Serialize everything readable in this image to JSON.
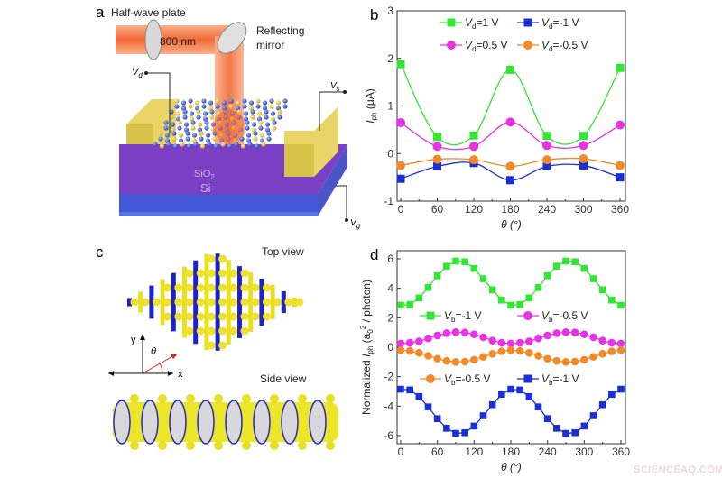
{
  "panels": {
    "a": {
      "letter": "a",
      "half_wave_plate": "Half-wave plate",
      "wavelength": "800 nm",
      "mirror_line1": "Reflecting",
      "mirror_line2": "mirror",
      "vd": {
        "symbol": "V",
        "sub": "d"
      },
      "vs": {
        "symbol": "V",
        "sub": "s"
      },
      "vg": {
        "symbol": "V",
        "sub": "g"
      },
      "sio2": "SiO",
      "sio2_sub": "2",
      "si": "Si"
    },
    "c": {
      "letter": "c",
      "top_view": "Top view",
      "side_view": "Side view",
      "axis_x": "x",
      "axis_y": "y",
      "angle": "θ"
    }
  },
  "chart_data": [
    {
      "panel": "b",
      "type": "line",
      "xlabel": "θ (°)",
      "ylabel": {
        "symbol": "I",
        "sub": "ph",
        "rest": " (μA)"
      },
      "xlim": [
        0,
        360
      ],
      "ylim": [
        -1,
        3
      ],
      "xticks": [
        0,
        60,
        120,
        180,
        240,
        300,
        360
      ],
      "yticks": [
        -1,
        0,
        1,
        2,
        3
      ],
      "grid": false,
      "legend_placement": "top",
      "x": [
        0,
        60,
        120,
        180,
        240,
        300,
        360
      ],
      "series": [
        {
          "name": "Vd=1 V",
          "label": {
            "symbol": "V",
            "sub": "d",
            "rest": "=1 V"
          },
          "marker": "square",
          "color": "#33e633",
          "values": [
            1.88,
            0.35,
            0.38,
            1.76,
            0.37,
            0.37,
            1.8
          ]
        },
        {
          "name": "Vd=-1 V",
          "label": {
            "symbol": "V",
            "sub": "d",
            "rest": "=-1 V"
          },
          "marker": "square",
          "color": "#1a2fd6",
          "values": [
            -0.53,
            -0.27,
            -0.2,
            -0.56,
            -0.27,
            -0.25,
            -0.5
          ]
        },
        {
          "name": "Vd=0.5 V",
          "label": {
            "symbol": "V",
            "sub": "d",
            "rest": "=0.5 V"
          },
          "marker": "circle",
          "color": "#e633e6",
          "values": [
            0.65,
            0.15,
            0.15,
            0.66,
            0.17,
            0.17,
            0.6
          ]
        },
        {
          "name": "Vd=-0.5 V",
          "label": {
            "symbol": "V",
            "sub": "d",
            "rest": "=-0.5 V"
          },
          "marker": "circle",
          "color": "#f28a2a",
          "values": [
            -0.25,
            -0.12,
            -0.13,
            -0.27,
            -0.13,
            -0.11,
            -0.25
          ]
        }
      ]
    },
    {
      "panel": "d",
      "type": "line",
      "xlabel": "θ (°)",
      "ylabel": {
        "pre": "Normalized ",
        "symbol": "I",
        "sub": "ph",
        "rest": " (a",
        "sub2": "0",
        "sup": "2",
        "end": " / photon)"
      },
      "xlim": [
        0,
        360
      ],
      "ylim": [
        -6.5,
        6.5
      ],
      "xticks": [
        0,
        60,
        120,
        180,
        240,
        300,
        360
      ],
      "yticks": [
        -6,
        -4,
        -2,
        0,
        2,
        4,
        6
      ],
      "grid": false,
      "x": [
        0,
        15,
        30,
        45,
        60,
        75,
        90,
        105,
        120,
        135,
        150,
        165,
        180,
        195,
        210,
        225,
        240,
        255,
        270,
        285,
        300,
        315,
        330,
        345,
        360
      ],
      "series": [
        {
          "name": "Vb=-1 V",
          "label": {
            "symbol": "V",
            "sub": "b",
            "rest": "=-1 V"
          },
          "marker": "square",
          "color": "#33e633",
          "values": [
            2.85,
            2.9,
            3.35,
            4.05,
            4.85,
            5.5,
            5.85,
            5.8,
            5.35,
            4.65,
            3.9,
            3.2,
            2.85,
            2.9,
            3.35,
            4.05,
            4.85,
            5.5,
            5.85,
            5.8,
            5.35,
            4.65,
            3.9,
            3.2,
            2.85
          ]
        },
        {
          "name": "Vb=-0.5 V",
          "label": {
            "symbol": "V",
            "sub": "b",
            "rest": "=-0.5 V"
          },
          "marker": "circle",
          "color": "#e633e6",
          "values": [
            0.25,
            0.3,
            0.4,
            0.6,
            0.8,
            0.95,
            1.02,
            1.0,
            0.88,
            0.68,
            0.45,
            0.3,
            0.25,
            0.3,
            0.4,
            0.6,
            0.8,
            0.95,
            1.02,
            1.0,
            0.88,
            0.68,
            0.45,
            0.3,
            0.25
          ]
        },
        {
          "name": "Vb=-0.5 V",
          "label": {
            "symbol": "V",
            "sub": "b",
            "rest": "=-0.5 V"
          },
          "marker": "circle",
          "color": "#f28a2a",
          "values": [
            -0.2,
            -0.25,
            -0.38,
            -0.58,
            -0.78,
            -0.93,
            -1.0,
            -0.98,
            -0.85,
            -0.65,
            -0.45,
            -0.28,
            -0.2,
            -0.25,
            -0.38,
            -0.58,
            -0.78,
            -0.93,
            -1.0,
            -0.98,
            -0.85,
            -0.65,
            -0.45,
            -0.28,
            -0.2
          ]
        },
        {
          "name": "Vb=-1 V",
          "label": {
            "symbol": "V",
            "sub": "b",
            "rest": "=-1 V"
          },
          "marker": "square",
          "color": "#1a2fd6",
          "values": [
            -2.85,
            -2.9,
            -3.35,
            -4.05,
            -4.85,
            -5.5,
            -5.85,
            -5.8,
            -5.35,
            -4.65,
            -3.9,
            -3.2,
            -2.85,
            -2.9,
            -3.35,
            -4.05,
            -4.85,
            -5.5,
            -5.85,
            -5.8,
            -5.35,
            -4.65,
            -3.9,
            -3.2,
            -2.85
          ]
        }
      ]
    }
  ],
  "watermark": "SCIENCEAQ.COM"
}
